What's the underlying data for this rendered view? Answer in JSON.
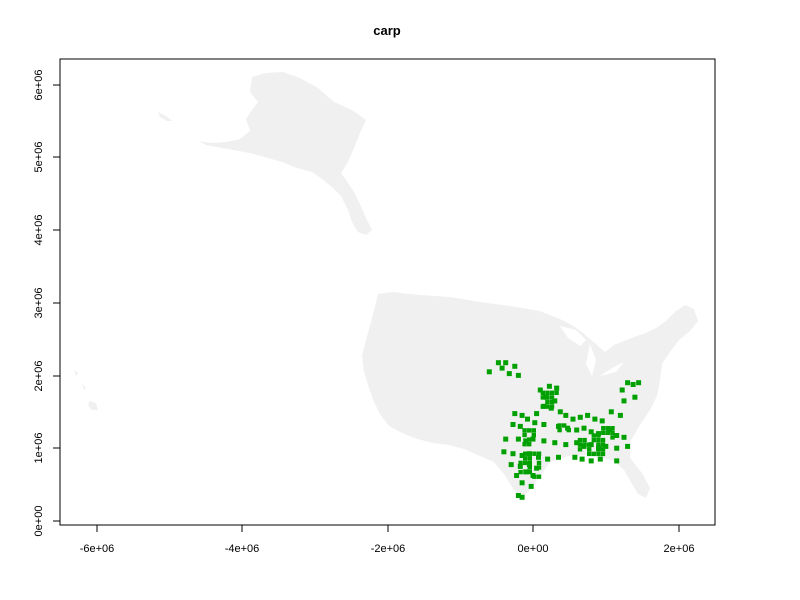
{
  "chart_data": {
    "type": "map",
    "title": "carp",
    "xlabel": "",
    "ylabel": "",
    "xlim": [
      -6500000,
      2500000
    ],
    "ylim": [
      -50000,
      6350000
    ],
    "x_ticks": [
      {
        "value": -6000000,
        "label": "-6e+06"
      },
      {
        "value": -4000000,
        "label": "-4e+06"
      },
      {
        "value": -2000000,
        "label": "-2e+06"
      },
      {
        "value": 0,
        "label": "0e+00"
      },
      {
        "value": 2000000,
        "label": "2e+06"
      }
    ],
    "y_ticks": [
      {
        "value": 0,
        "label": "0e+00"
      },
      {
        "value": 1000000,
        "label": "1e+06"
      },
      {
        "value": 2000000,
        "label": "2e+06"
      },
      {
        "value": 3000000,
        "label": "3e+06"
      },
      {
        "value": 4000000,
        "label": "4e+06"
      },
      {
        "value": 5000000,
        "label": "5e+06"
      },
      {
        "value": 6000000,
        "label": "6e+06"
      }
    ],
    "grid": false,
    "colors": {
      "land": "#f0f0f0",
      "presence": "#00a000",
      "frame": "#000000"
    },
    "occurrence_points": [
      [
        -475000,
        2175000
      ],
      [
        -375000,
        2175000
      ],
      [
        -425000,
        2100000
      ],
      [
        -250000,
        2125000
      ],
      [
        -325000,
        2025000
      ],
      [
        -200000,
        2000000
      ],
      [
        -600000,
        2050000
      ],
      [
        100000,
        1800000
      ],
      [
        225000,
        1850000
      ],
      [
        325000,
        1825000
      ],
      [
        175000,
        1700000
      ],
      [
        300000,
        1650000
      ],
      [
        150000,
        1575000
      ],
      [
        250000,
        1550000
      ],
      [
        50000,
        1475000
      ],
      [
        375000,
        1500000
      ],
      [
        450000,
        1450000
      ],
      [
        550000,
        1400000
      ],
      [
        650000,
        1425000
      ],
      [
        750000,
        1450000
      ],
      [
        850000,
        1400000
      ],
      [
        950000,
        1375000
      ],
      [
        -250000,
        1475000
      ],
      [
        -150000,
        1450000
      ],
      [
        -75000,
        1400000
      ],
      [
        -275000,
        1325000
      ],
      [
        -175000,
        1300000
      ],
      [
        25000,
        1350000
      ],
      [
        150000,
        1325000
      ],
      [
        350000,
        1300000
      ],
      [
        475000,
        1275000
      ],
      [
        600000,
        1250000
      ],
      [
        700000,
        1275000
      ],
      [
        800000,
        1225000
      ],
      [
        900000,
        1200000
      ],
      [
        1050000,
        1250000
      ],
      [
        1150000,
        1175000
      ],
      [
        1250000,
        1150000
      ],
      [
        -375000,
        1125000
      ],
      [
        -200000,
        1125000
      ],
      [
        -100000,
        1100000
      ],
      [
        0,
        1125000
      ],
      [
        150000,
        1100000
      ],
      [
        300000,
        1075000
      ],
      [
        450000,
        1050000
      ],
      [
        600000,
        1075000
      ],
      [
        700000,
        1025000
      ],
      [
        800000,
        1050000
      ],
      [
        900000,
        1000000
      ],
      [
        1000000,
        1025000
      ],
      [
        1150000,
        1000000
      ],
      [
        1300000,
        1025000
      ],
      [
        -400000,
        950000
      ],
      [
        -275000,
        925000
      ],
      [
        -150000,
        900000
      ],
      [
        -50000,
        925000
      ],
      [
        75000,
        875000
      ],
      [
        200000,
        850000
      ],
      [
        350000,
        875000
      ],
      [
        575000,
        875000
      ],
      [
        675000,
        850000
      ],
      [
        800000,
        825000
      ],
      [
        925000,
        850000
      ],
      [
        1150000,
        825000
      ],
      [
        -300000,
        775000
      ],
      [
        -175000,
        750000
      ],
      [
        -50000,
        775000
      ],
      [
        50000,
        725000
      ],
      [
        -100000,
        675000
      ],
      [
        -225000,
        625000
      ],
      [
        0,
        625000
      ],
      [
        -150000,
        525000
      ],
      [
        -25000,
        475000
      ],
      [
        -200000,
        350000
      ],
      [
        -150000,
        325000
      ],
      [
        1225000,
        1800000
      ],
      [
        1300000,
        1900000
      ],
      [
        1375000,
        1875000
      ],
      [
        1450000,
        1900000
      ],
      [
        1250000,
        1650000
      ],
      [
        1400000,
        1700000
      ],
      [
        1075000,
        1500000
      ],
      [
        1200000,
        1450000
      ]
    ],
    "dense_patches": [
      [
        225000,
        1725000,
        240000,
        260000
      ],
      [
        425000,
        1325000,
        180000,
        160000
      ],
      [
        775000,
        1075000,
        320000,
        260000
      ],
      [
        -75000,
        1175000,
        140000,
        200000
      ],
      [
        -50000,
        775000,
        300000,
        360000
      ],
      [
        1025000,
        1225000,
        180000,
        160000
      ]
    ]
  }
}
